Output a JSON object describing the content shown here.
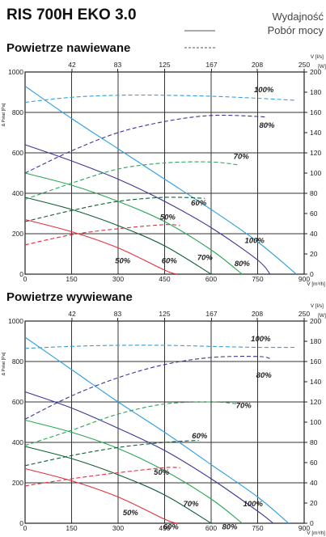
{
  "title": "RIS 700H EKO 3.0",
  "legend": {
    "efficiency": "Wydajność",
    "power": "Pobór mocy"
  },
  "chart_data": [
    {
      "type": "line",
      "title": "Powietrze nawiewane",
      "left_axis_label": "Δ Pstat [Pa]",
      "bottom_axis_label": "V [m³/h]",
      "top_axis_label": "V [l/s]",
      "right_axis_label": "[W]",
      "xlim": [
        0,
        900
      ],
      "ylim": [
        0,
        1000
      ],
      "y2lim": [
        0,
        200
      ],
      "x_ticks": [
        "0",
        "150",
        "300",
        "450",
        "600",
        "750",
        "900"
      ],
      "top_ticks": [
        "42",
        "83",
        "125",
        "167",
        "208",
        "250"
      ],
      "y_ticks": [
        "0",
        "200",
        "400",
        "600",
        "800",
        "1000"
      ],
      "y2_ticks": [
        "0",
        "20",
        "40",
        "60",
        "80",
        "100",
        "120",
        "140",
        "160",
        "180",
        "200"
      ],
      "grid": true,
      "series": [
        {
          "name": "100%",
          "kind": "pressure",
          "color": "#2f9fe0",
          "x": [
            0,
            150,
            300,
            450,
            600,
            750,
            875
          ],
          "y": [
            930,
            770,
            620,
            470,
            320,
            160,
            0
          ]
        },
        {
          "name": "80%",
          "kind": "pressure",
          "color": "#3b3693",
          "x": [
            0,
            150,
            300,
            450,
            600,
            750,
            790
          ],
          "y": [
            640,
            560,
            470,
            360,
            230,
            70,
            0
          ]
        },
        {
          "name": "70%",
          "kind": "pressure",
          "color": "#2aa653",
          "x": [
            0,
            150,
            300,
            450,
            600,
            700
          ],
          "y": [
            500,
            440,
            360,
            260,
            120,
            0
          ]
        },
        {
          "name": "60%",
          "kind": "pressure",
          "color": "#115e36",
          "x": [
            0,
            150,
            300,
            450,
            600
          ],
          "y": [
            380,
            320,
            240,
            140,
            0
          ]
        },
        {
          "name": "50%",
          "kind": "pressure",
          "color": "#e62e3c",
          "x": [
            0,
            150,
            300,
            450,
            490
          ],
          "y": [
            270,
            210,
            130,
            20,
            0
          ]
        },
        {
          "name": "100%",
          "kind": "power",
          "color": "#2f9fe0",
          "x": [
            0,
            150,
            300,
            450,
            600,
            750,
            870
          ],
          "y": [
            170,
            175,
            177,
            177,
            176,
            174,
            172
          ]
        },
        {
          "name": "80%",
          "kind": "power",
          "color": "#3b3693",
          "x": [
            0,
            150,
            300,
            450,
            600,
            750,
            780
          ],
          "y": [
            100,
            122,
            140,
            151,
            157,
            156,
            155
          ]
        },
        {
          "name": "70%",
          "kind": "power",
          "color": "#2aa653",
          "x": [
            0,
            150,
            300,
            450,
            600,
            690
          ],
          "y": [
            74,
            90,
            104,
            110,
            111,
            108
          ]
        },
        {
          "name": "60%",
          "kind": "power",
          "color": "#115e36",
          "x": [
            0,
            150,
            300,
            450,
            580
          ],
          "y": [
            52,
            63,
            72,
            76,
            75
          ]
        },
        {
          "name": "50%",
          "kind": "power",
          "color": "#e62e3c",
          "x": [
            0,
            150,
            300,
            450,
            500
          ],
          "y": [
            29,
            39,
            45,
            49,
            48
          ]
        }
      ],
      "annotations": [
        {
          "text": "100%",
          "x": 770,
          "y": 900
        },
        {
          "text": "80%",
          "x": 780,
          "y": 725
        },
        {
          "text": "70%",
          "x": 697,
          "y": 570
        },
        {
          "text": "60%",
          "x": 560,
          "y": 340
        },
        {
          "text": "50%",
          "x": 460,
          "y": 270
        },
        {
          "text": "100%",
          "x": 740,
          "y": 155
        },
        {
          "text": "80%",
          "x": 700,
          "y": 40
        },
        {
          "text": "70%",
          "x": 580,
          "y": 70
        },
        {
          "text": "60%",
          "x": 465,
          "y": 55
        },
        {
          "text": "50%",
          "x": 315,
          "y": 55
        }
      ]
    },
    {
      "type": "line",
      "title": "Powietrze wywiewane",
      "left_axis_label": "Δ Pstat [Pa]",
      "bottom_axis_label": "V [m³/h]",
      "top_axis_label": "V [l/s]",
      "right_axis_label": "[W]",
      "xlim": [
        0,
        900
      ],
      "ylim": [
        0,
        1000
      ],
      "y2lim": [
        0,
        200
      ],
      "x_ticks": [
        "0",
        "150",
        "300",
        "450",
        "600",
        "750",
        "900"
      ],
      "top_ticks": [
        "42",
        "83",
        "125",
        "167",
        "208",
        "250"
      ],
      "y_ticks": [
        "0",
        "200",
        "400",
        "600",
        "800",
        "1000"
      ],
      "y2_ticks": [
        "0",
        "20",
        "40",
        "60",
        "80",
        "100",
        "120",
        "140",
        "160",
        "180",
        "200"
      ],
      "grid": true,
      "series": [
        {
          "name": "100%",
          "kind": "pressure",
          "color": "#2f9fe0",
          "x": [
            0,
            150,
            300,
            450,
            600,
            750,
            850
          ],
          "y": [
            920,
            760,
            600,
            450,
            290,
            130,
            0
          ]
        },
        {
          "name": "80%",
          "kind": "pressure",
          "color": "#3b3693",
          "x": [
            0,
            150,
            300,
            450,
            600,
            750,
            800
          ],
          "y": [
            650,
            570,
            470,
            360,
            220,
            60,
            0
          ]
        },
        {
          "name": "70%",
          "kind": "pressure",
          "color": "#2aa653",
          "x": [
            0,
            150,
            300,
            450,
            600,
            700
          ],
          "y": [
            510,
            450,
            370,
            260,
            120,
            0
          ]
        },
        {
          "name": "60%",
          "kind": "pressure",
          "color": "#115e36",
          "x": [
            0,
            150,
            300,
            450,
            600
          ],
          "y": [
            380,
            320,
            240,
            140,
            0
          ]
        },
        {
          "name": "50%",
          "kind": "pressure",
          "color": "#e62e3c",
          "x": [
            0,
            150,
            300,
            450,
            490
          ],
          "y": [
            270,
            210,
            130,
            20,
            0
          ]
        },
        {
          "name": "100%",
          "kind": "power",
          "color": "#2f9fe0",
          "x": [
            0,
            150,
            300,
            450,
            600,
            750,
            870
          ],
          "y": [
            173,
            175,
            176,
            176,
            175,
            174,
            174
          ]
        },
        {
          "name": "80%",
          "kind": "power",
          "color": "#3b3693",
          "x": [
            0,
            150,
            300,
            450,
            600,
            750,
            790
          ],
          "y": [
            103,
            126,
            144,
            157,
            164,
            165,
            163
          ]
        },
        {
          "name": "70%",
          "kind": "power",
          "color": "#2aa653",
          "x": [
            0,
            150,
            300,
            450,
            600,
            690
          ],
          "y": [
            77,
            92,
            108,
            118,
            120,
            118
          ]
        },
        {
          "name": "60%",
          "kind": "power",
          "color": "#115e36",
          "x": [
            0,
            150,
            300,
            450,
            560
          ],
          "y": [
            57,
            67,
            75,
            80,
            82
          ]
        },
        {
          "name": "50%",
          "kind": "power",
          "color": "#e62e3c",
          "x": [
            0,
            150,
            300,
            450,
            500
          ],
          "y": [
            37,
            44,
            50,
            55,
            55
          ]
        }
      ],
      "annotations": [
        {
          "text": "100%",
          "x": 760,
          "y": 900
        },
        {
          "text": "80%",
          "x": 770,
          "y": 720
        },
        {
          "text": "70%",
          "x": 705,
          "y": 570
        },
        {
          "text": "60%",
          "x": 563,
          "y": 420
        },
        {
          "text": "50%",
          "x": 440,
          "y": 240
        },
        {
          "text": "100%",
          "x": 735,
          "y": 85
        },
        {
          "text": "80%",
          "x": 660,
          "y": -30
        },
        {
          "text": "70%",
          "x": 535,
          "y": 85
        },
        {
          "text": "60%",
          "x": 470,
          "y": -30
        },
        {
          "text": "50%",
          "x": 340,
          "y": 40
        }
      ]
    }
  ]
}
